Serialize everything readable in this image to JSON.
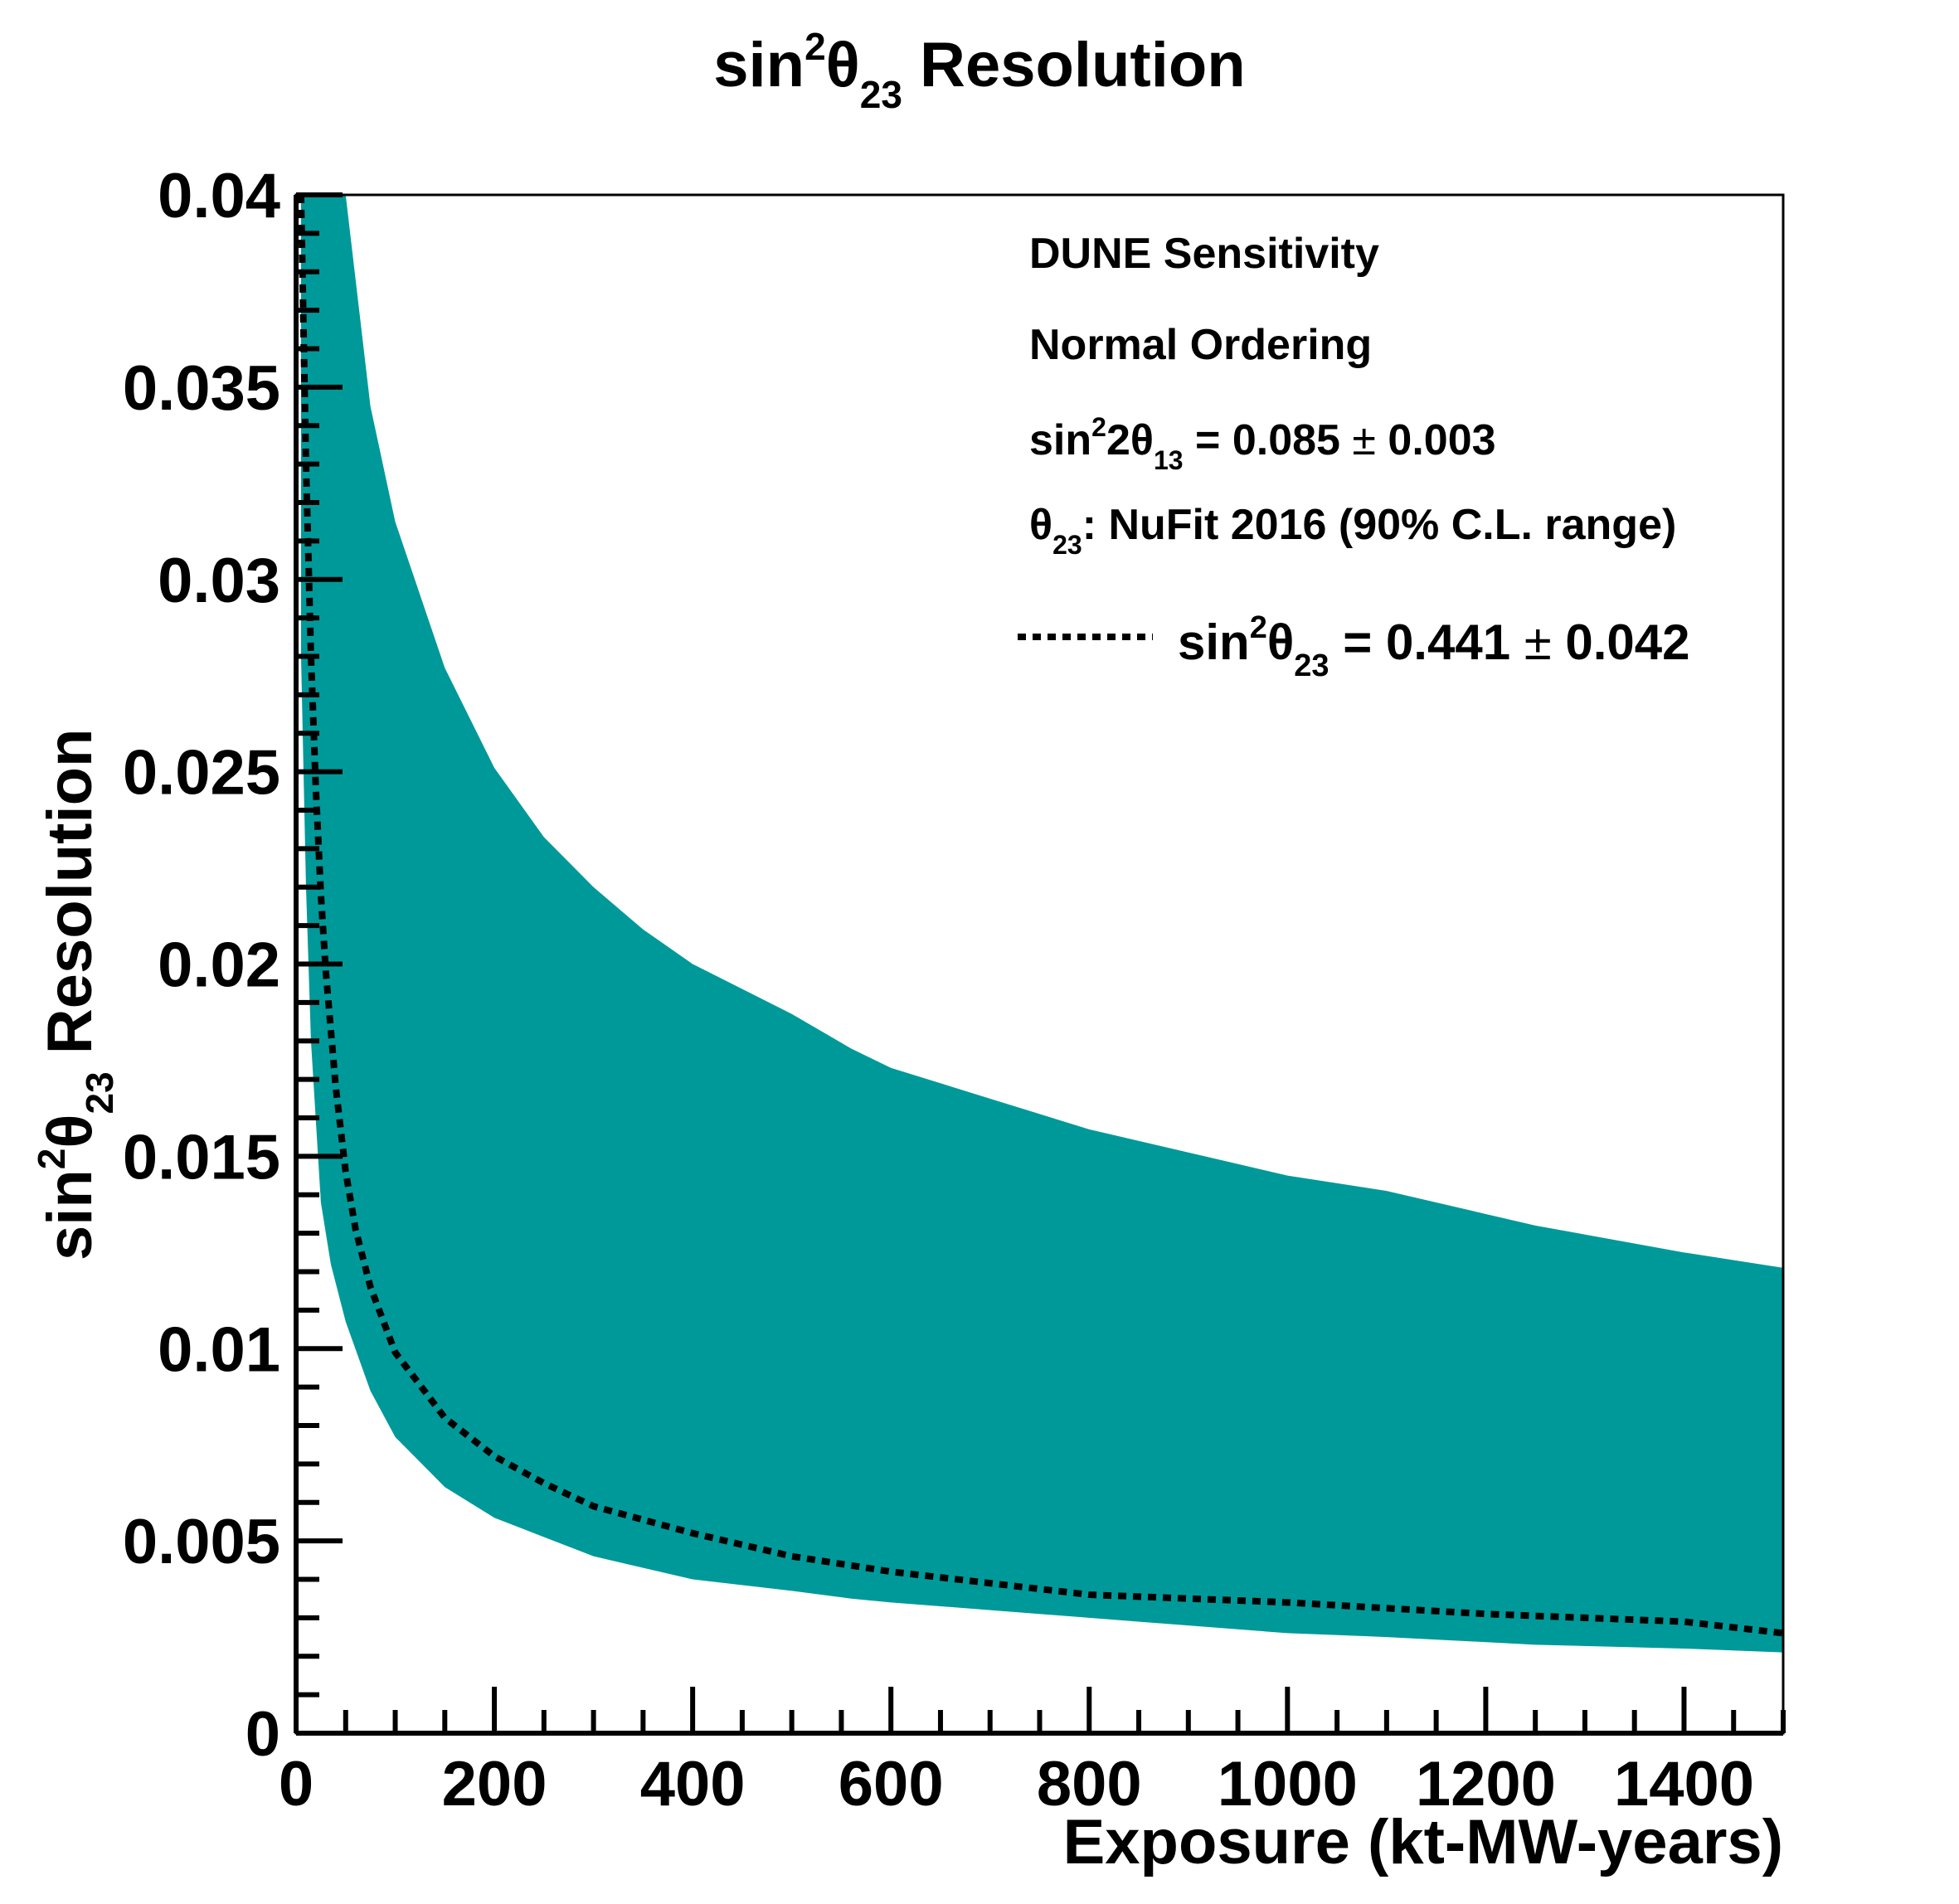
{
  "chart_data": {
    "type": "area",
    "title": {
      "base": "sin",
      "sup": "2",
      "theta": "θ",
      "sub": "23",
      "rest": " Resolution"
    },
    "ylabel": {
      "base": "sin",
      "sup": "2",
      "theta": "θ",
      "sub": "23",
      "rest": " Resolution"
    },
    "xlabel": "Exposure (kt-MW-years)",
    "xlim": [
      0,
      1500
    ],
    "ylim": [
      0,
      0.04
    ],
    "grid": false,
    "x_ticks": [
      0,
      200,
      400,
      600,
      800,
      1000,
      1200,
      1400
    ],
    "x_tick_labels": [
      "0",
      "200",
      "400",
      "600",
      "800",
      "1000",
      "1200",
      "1400"
    ],
    "y_ticks": [
      0,
      0.005,
      0.01,
      0.015,
      0.02,
      0.025,
      0.03,
      0.035,
      0.04
    ],
    "y_tick_labels": [
      "0",
      "0.005",
      "0.01",
      "0.015",
      "0.02",
      "0.025",
      "0.03",
      "0.035",
      "0.04"
    ],
    "band": {
      "name": "NuFit 2016 (90% C.L. range)",
      "color": "#009999",
      "x": [
        5,
        10,
        15,
        25,
        35,
        50,
        75,
        100,
        150,
        200,
        250,
        300,
        350,
        400,
        500,
        560,
        600,
        700,
        800,
        900,
        1000,
        1100,
        1250,
        1400,
        1500
      ],
      "upper": [
        0.04,
        0.04,
        0.04,
        0.04,
        0.04,
        0.04,
        0.0345,
        0.0315,
        0.0277,
        0.0251,
        0.0233,
        0.022,
        0.0209,
        0.02,
        0.0187,
        0.0178,
        0.0173,
        0.0165,
        0.0157,
        0.0151,
        0.0145,
        0.0141,
        0.0132,
        0.0125,
        0.0121
      ],
      "lower": [
        0.028,
        0.022,
        0.018,
        0.0138,
        0.0122,
        0.0107,
        0.0089,
        0.0077,
        0.0064,
        0.0056,
        0.0051,
        0.0046,
        0.0043,
        0.004,
        0.0037,
        0.0035,
        0.0034,
        0.0032,
        0.003,
        0.0028,
        0.0026,
        0.0025,
        0.0023,
        0.0022,
        0.0021
      ]
    },
    "series": [
      {
        "name": "sin²θ23 = 0.441 ± 0.042",
        "style": "dotted",
        "color": "#000000",
        "x": [
          5,
          10,
          15,
          20,
          25,
          30,
          40,
          50,
          60,
          75,
          100,
          150,
          200,
          250,
          300,
          400,
          500,
          600,
          700,
          800,
          1000,
          1200,
          1400,
          1500
        ],
        "y": [
          0.04,
          0.033,
          0.028,
          0.0245,
          0.0218,
          0.0198,
          0.0168,
          0.0146,
          0.0131,
          0.0116,
          0.0099,
          0.0082,
          0.0072,
          0.0065,
          0.0059,
          0.0052,
          0.0046,
          0.0042,
          0.0039,
          0.0036,
          0.0034,
          0.0031,
          0.0029,
          0.0026
        ]
      }
    ],
    "annotations": {
      "line1": "DUNE Sensitivity",
      "line2": "Normal Ordering",
      "line3": {
        "a": "sin",
        "sup": "2",
        "b": "2θ",
        "sub": "13",
        "c": " = 0.085 ",
        "pm": "±",
        "d": " 0.003"
      },
      "line4": {
        "a": "θ",
        "sub": "23",
        "b": ": NuFit 2016 (90% C.L. range)"
      },
      "legend": {
        "a": "sin",
        "sup": "2",
        "b": "θ",
        "sub": "23",
        "c": " = 0.441 ",
        "pm": "±",
        "d": " 0.042"
      }
    },
    "legend_position": "top-right"
  }
}
